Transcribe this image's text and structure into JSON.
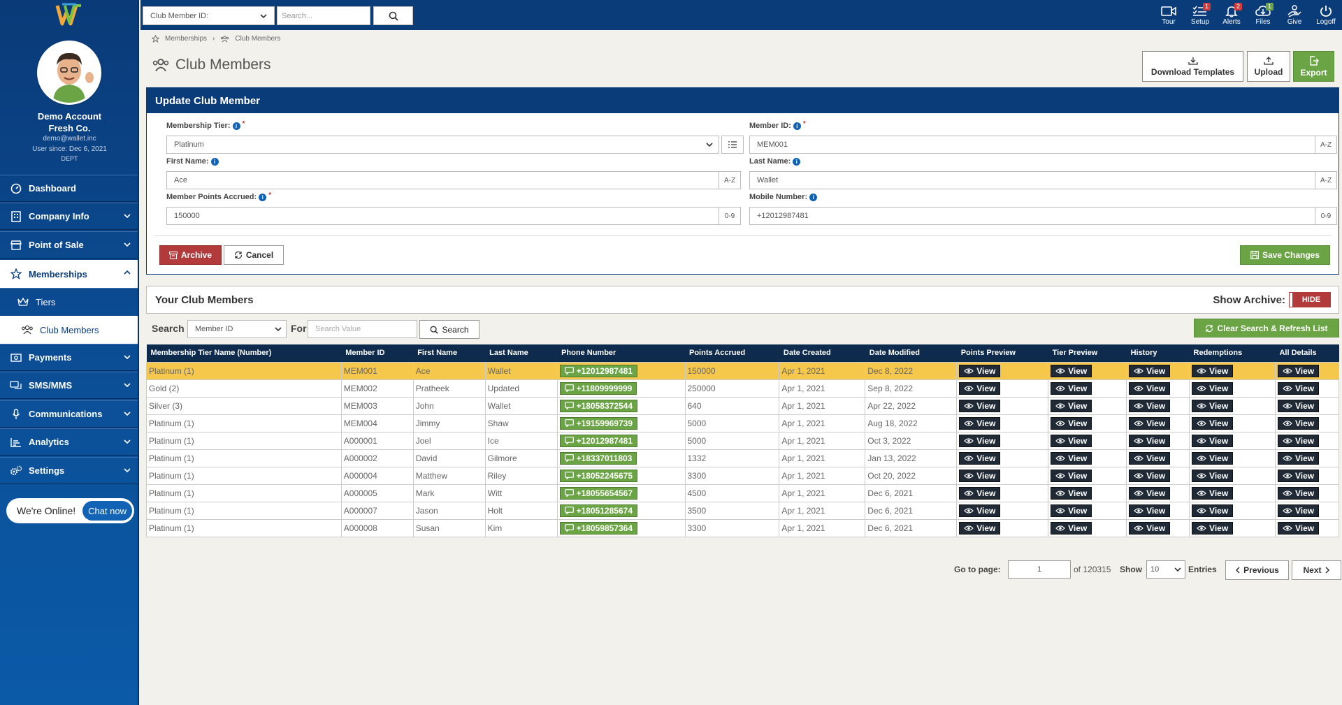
{
  "profile": {
    "name": "Demo Account",
    "company": "Fresh Co.",
    "email": "demo@wallet.inc",
    "since": "User since: Dec 6, 2021",
    "dept": "DEPT"
  },
  "sidebar": {
    "items": [
      {
        "label": "Dashboard",
        "icon": "dashboard-icon"
      },
      {
        "label": "Company Info",
        "icon": "building-icon"
      },
      {
        "label": "Point of Sale",
        "icon": "store-icon"
      },
      {
        "label": "Memberships",
        "icon": "star-icon"
      },
      {
        "label": "Tiers",
        "icon": "crown-icon"
      },
      {
        "label": "Club Members",
        "icon": "users-icon"
      },
      {
        "label": "Payments",
        "icon": "money-icon"
      },
      {
        "label": "SMS/MMS",
        "icon": "chat-icon"
      },
      {
        "label": "Communications",
        "icon": "microphone-icon"
      },
      {
        "label": "Analytics",
        "icon": "analytics-icon"
      },
      {
        "label": "Settings",
        "icon": "gears-icon"
      }
    ],
    "chat_status": "We're Online!",
    "chat_button": "Chat now"
  },
  "topbar": {
    "select_value": "Club Member ID:",
    "search_placeholder": "Search...",
    "icons": [
      {
        "label": "Tour",
        "icon": "video-icon",
        "badge": ""
      },
      {
        "label": "Setup",
        "icon": "list-icon",
        "badge": "1"
      },
      {
        "label": "Alerts",
        "icon": "bell-icon",
        "badge": "2"
      },
      {
        "label": "Files",
        "icon": "cloud-download-icon",
        "badge": "1"
      },
      {
        "label": "Give",
        "icon": "give-icon",
        "badge": ""
      },
      {
        "label": "Logoff",
        "icon": "power-icon",
        "badge": ""
      }
    ]
  },
  "breadcrumb": {
    "root": "Memberships",
    "current": "Club Members"
  },
  "page": {
    "title": "Club Members",
    "download_templates": "Download Templates",
    "upload": "Upload",
    "export": "Export"
  },
  "form": {
    "heading": "Update Club Member",
    "tier_label": "Membership Tier:",
    "tier_value": "Platinum",
    "member_id_label": "Member ID:",
    "member_id_value": "MEM001",
    "first_name_label": "First Name:",
    "first_name_value": "Ace",
    "last_name_label": "Last Name:",
    "last_name_value": "Wallet",
    "points_label": "Member Points Accrued:",
    "points_value": "150000",
    "mobile_label": "Mobile Number:",
    "mobile_value": "+12012987481",
    "az": "A-Z",
    "num": "0-9",
    "archive": "Archive",
    "cancel": "Cancel",
    "save": "Save Changes"
  },
  "list": {
    "heading": "Your Club Members",
    "show_archive": "Show Archive:",
    "archive_toggle": "HIDE",
    "search_label": "Search",
    "search_field": "Member ID",
    "for_label": "For",
    "value_placeholder": "Search Value",
    "search_button": "Search",
    "clear_button": "Clear Search & Refresh List"
  },
  "table": {
    "columns": [
      "Membership Tier Name (Number)",
      "Member ID",
      "First Name",
      "Last Name",
      "Phone Number",
      "Points Accrued",
      "Date Created",
      "Date Modified",
      "Points Preview",
      "Tier Preview",
      "History",
      "Redemptions",
      "All Details"
    ],
    "view_label": "View",
    "rows": [
      {
        "tier": "Platinum (1)",
        "id": "MEM001",
        "first": "Ace",
        "last": "Wallet",
        "phone": "+12012987481",
        "points": "150000",
        "created": "Apr 1, 2021",
        "modified": "Dec 8, 2022"
      },
      {
        "tier": "Gold (2)",
        "id": "MEM002",
        "first": "Pratheek",
        "last": "Updated",
        "phone": "+11809999999",
        "points": "250000",
        "created": "Apr 1, 2021",
        "modified": "Sep 8, 2022"
      },
      {
        "tier": "Silver (3)",
        "id": "MEM003",
        "first": "John",
        "last": "Wallet",
        "phone": "+18058372544",
        "points": "640",
        "created": "Apr 1, 2021",
        "modified": "Apr 22, 2022"
      },
      {
        "tier": "Platinum (1)",
        "id": "MEM004",
        "first": "Jimmy",
        "last": "Shaw",
        "phone": "+19159969739",
        "points": "5000",
        "created": "Apr 1, 2021",
        "modified": "Aug 18, 2022"
      },
      {
        "tier": "Platinum (1)",
        "id": "A000001",
        "first": "Joel",
        "last": "Ice",
        "phone": "+12012987481",
        "points": "5000",
        "created": "Apr 1, 2021",
        "modified": "Oct 3, 2022"
      },
      {
        "tier": "Platinum (1)",
        "id": "A000002",
        "first": "David",
        "last": "Gilmore",
        "phone": "+18337011803",
        "points": "1332",
        "created": "Apr 1, 2021",
        "modified": "Jan 13, 2022"
      },
      {
        "tier": "Platinum (1)",
        "id": "A000004",
        "first": "Matthew",
        "last": "Riley",
        "phone": "+18052245675",
        "points": "3300",
        "created": "Apr 1, 2021",
        "modified": "Oct 20, 2022"
      },
      {
        "tier": "Platinum (1)",
        "id": "A000005",
        "first": "Mark",
        "last": "Witt",
        "phone": "+18055654567",
        "points": "4500",
        "created": "Apr 1, 2021",
        "modified": "Dec 6, 2021"
      },
      {
        "tier": "Platinum (1)",
        "id": "A000007",
        "first": "Jason",
        "last": "Holt",
        "phone": "+18051285674",
        "points": "3500",
        "created": "Apr 1, 2021",
        "modified": "Dec 6, 2021"
      },
      {
        "tier": "Platinum (1)",
        "id": "A000008",
        "first": "Susan",
        "last": "Kim",
        "phone": "+18059857364",
        "points": "3300",
        "created": "Apr 1, 2021",
        "modified": "Dec 6, 2021"
      }
    ]
  },
  "pager": {
    "goto_label": "Go to page:",
    "page_value": "1",
    "of_total": "of 120315",
    "show_label": "Show",
    "show_value": "10",
    "entries_label": "Entries",
    "previous": "Previous",
    "next": "Next"
  }
}
